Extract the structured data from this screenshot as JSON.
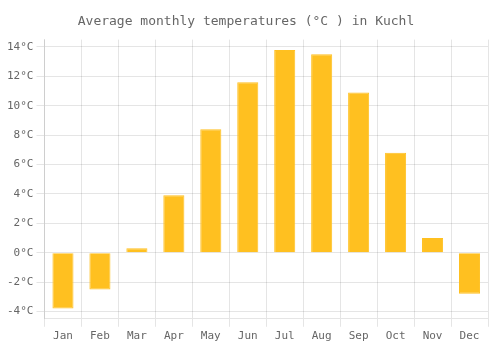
{
  "chart_data": {
    "type": "bar",
    "title": "Average monthly temperatures (°C ) in Kuchl",
    "categories": [
      "Jan",
      "Feb",
      "Mar",
      "Apr",
      "May",
      "Jun",
      "Jul",
      "Aug",
      "Sep",
      "Oct",
      "Nov",
      "Dec"
    ],
    "values": [
      -3.8,
      -2.5,
      0.3,
      3.9,
      8.4,
      11.6,
      13.8,
      13.5,
      10.9,
      6.8,
      1.0,
      -2.8
    ],
    "color": "#FFC020",
    "ylim": [
      -4.5,
      14.5
    ],
    "yticks": [
      {
        "value": -4,
        "label": "-4°C"
      },
      {
        "value": -2,
        "label": "-2°C"
      },
      {
        "value": 0,
        "label": "0°C"
      },
      {
        "value": 2,
        "label": "2°C"
      },
      {
        "value": 4,
        "label": "4°C"
      },
      {
        "value": 6,
        "label": "6°C"
      },
      {
        "value": 8,
        "label": "8°C"
      },
      {
        "value": 10,
        "label": "10°C"
      },
      {
        "value": 12,
        "label": "12°C"
      },
      {
        "value": 14,
        "label": "14°C"
      }
    ],
    "grid": true
  }
}
